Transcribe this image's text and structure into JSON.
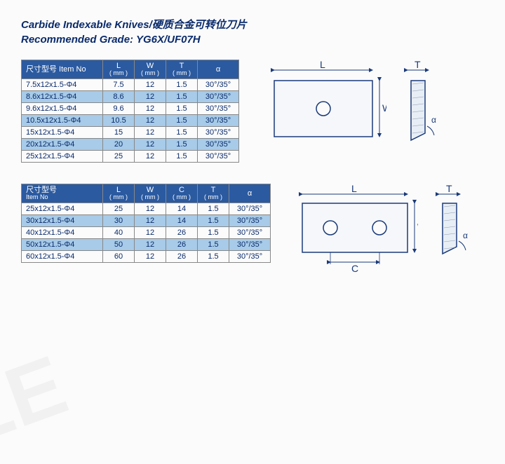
{
  "title_line1": "Carbide Indexable Knives/硬质合金可转位刀片",
  "title_line2": "Recommended Grade: YG6X/UF07H",
  "table1": {
    "headers": {
      "itemno": "尺寸型号 Item No",
      "l": "L",
      "w": "W",
      "t": "T",
      "alpha": "α",
      "unit": "( mm )"
    },
    "rows": [
      {
        "item": "7.5x12x1.5-Φ4",
        "l": "7.5",
        "w": "12",
        "t": "1.5",
        "a": "30°/35°"
      },
      {
        "item": "8.6x12x1.5-Φ4",
        "l": "8.6",
        "w": "12",
        "t": "1.5",
        "a": "30°/35°"
      },
      {
        "item": "9.6x12x1.5-Φ4",
        "l": "9.6",
        "w": "12",
        "t": "1.5",
        "a": "30°/35°"
      },
      {
        "item": "10.5x12x1.5-Φ4",
        "l": "10.5",
        "w": "12",
        "t": "1.5",
        "a": "30°/35°"
      },
      {
        "item": "15x12x1.5-Φ4",
        "l": "15",
        "w": "12",
        "t": "1.5",
        "a": "30°/35°"
      },
      {
        "item": "20x12x1.5-Φ4",
        "l": "20",
        "w": "12",
        "t": "1.5",
        "a": "30°/35°"
      },
      {
        "item": "25x12x1.5-Φ4",
        "l": "25",
        "w": "12",
        "t": "1.5",
        "a": "30°/35°"
      }
    ]
  },
  "table2": {
    "headers": {
      "itemno_cn": "尺寸型号",
      "itemno_en": "Item No",
      "l": "L",
      "w": "W",
      "c": "C",
      "t": "T",
      "alpha": "α",
      "unit": "( mm )"
    },
    "rows": [
      {
        "item": "25x12x1.5-Φ4",
        "l": "25",
        "w": "12",
        "c": "14",
        "t": "1.5",
        "a": "30°/35°"
      },
      {
        "item": "30x12x1.5-Φ4",
        "l": "30",
        "w": "12",
        "c": "14",
        "t": "1.5",
        "a": "30°/35°"
      },
      {
        "item": "40x12x1.5-Φ4",
        "l": "40",
        "w": "12",
        "c": "26",
        "t": "1.5",
        "a": "30°/35°"
      },
      {
        "item": "50x12x1.5-Φ4",
        "l": "50",
        "w": "12",
        "c": "26",
        "t": "1.5",
        "a": "30°/35°"
      },
      {
        "item": "60x12x1.5-Φ4",
        "l": "60",
        "w": "12",
        "c": "26",
        "t": "1.5",
        "a": "30°/35°"
      }
    ]
  },
  "labels": {
    "L": "L",
    "W": "W",
    "T": "T",
    "C": "C",
    "alpha": "α"
  },
  "colors": {
    "header_bg": "#2b5aa0",
    "row_alt_bg": "#a7cbe8",
    "text": "#0a2b6b",
    "border": "#888888",
    "diagram_stroke": "#1a3a7a",
    "hatch": "#8898b0"
  }
}
